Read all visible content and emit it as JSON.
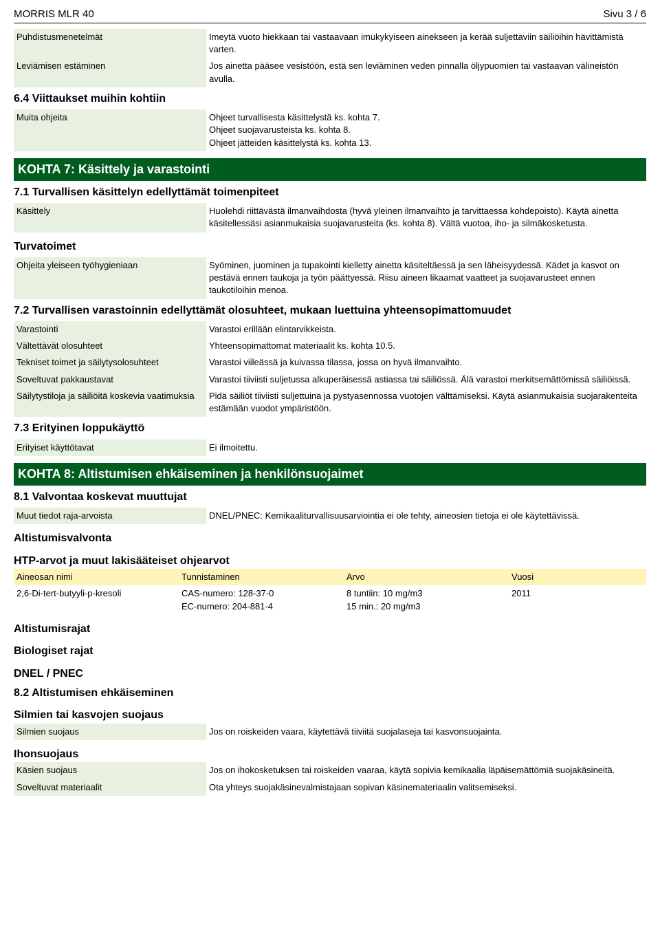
{
  "colors": {
    "section_bg": "#005c1f",
    "section_fg": "#ffffff",
    "label_shade": "#e8f0e0",
    "table_header_bg": "#fff4b8",
    "text": "#000000",
    "background": "#ffffff"
  },
  "header": {
    "title": "MORRIS MLR 40",
    "page": "Sivu 3 / 6"
  },
  "rows_pre": [
    {
      "label": "Puhdistusmenetelmät",
      "value": "Imeytä vuoto hiekkaan tai vastaavaan imukykyiseen ainekseen ja kerää suljettaviin säiliöihin hävittämistä varten."
    },
    {
      "label": "Leviämisen estäminen",
      "value": "Jos ainetta pääsee vesistöön, estä sen leviäminen veden pinnalla öljypuomien tai vastaavan välineistön avulla."
    }
  ],
  "sec64_title": "6.4 Viittaukset muihin kohtiin",
  "rows_64": [
    {
      "label": "Muita ohjeita",
      "value": "Ohjeet turvallisesta käsittelystä ks. kohta 7.\nOhjeet suojavarusteista ks. kohta 8.\nOhjeet jätteiden käsittelystä ks. kohta 13."
    }
  ],
  "kohta7": {
    "title": "KOHTA 7: Käsittely ja varastointi",
    "sec71": "7.1 Turvallisen käsittelyn edellyttämät toimenpiteet",
    "rows71": [
      {
        "label": "Käsittely",
        "value": "Huolehdi riittävästä ilmanvaihdosta (hyvä yleinen ilmanvaihto ja tarvittaessa kohdepoisto). Käytä ainetta käsitellessäsi asianmukaisia suojavarusteita (ks. kohta 8). Vältä vuotoa, iho- ja silmäkosketusta."
      }
    ],
    "turvatoimet": "Turvatoimet",
    "rows71b": [
      {
        "label": "Ohjeita yleiseen työhygieniaan",
        "value": "Syöminen, juominen ja tupakointi kielletty ainetta käsiteltäessä ja sen läheisyydessä. Kädet ja kasvot on pestävä ennen taukoja ja työn päättyessä. Riisu aineen likaamat vaatteet ja suojavarusteet ennen taukotiloihin menoa."
      }
    ],
    "sec72": "7.2 Turvallisen varastoinnin edellyttämät olosuhteet, mukaan luettuina yhteensopimattomuudet",
    "rows72": [
      {
        "label": "Varastointi",
        "value": "Varastoi erillään elintarvikkeista."
      },
      {
        "label": "Vältettävät olosuhteet",
        "value": "Yhteensopimattomat materiaalit ks. kohta 10.5."
      },
      {
        "label": "Tekniset toimet ja säilytysolosuhteet",
        "value": "Varastoi viileässä ja kuivassa tilassa, jossa on hyvä ilmanvaihto."
      },
      {
        "label": "Soveltuvat pakkaustavat",
        "value": "Varastoi tiiviisti suljetussa alkuperäisessä astiassa tai säiliössä. Älä varastoi merkitsemättömissä säiliöissä."
      },
      {
        "label": "Säilytystiloja ja säiliöitä koskevia vaatimuksia",
        "value": "Pidä säiliöt tiiviisti suljettuina ja pystyasennossa vuotojen välttämiseksi. Käytä asianmukaisia suojarakenteita estämään vuodot ympäristöön."
      }
    ],
    "sec73": "7.3 Erityinen loppukäyttö",
    "rows73": [
      {
        "label": "Erityiset käyttötavat",
        "value": "Ei ilmoitettu."
      }
    ]
  },
  "kohta8": {
    "title": "KOHTA 8: Altistumisen ehkäiseminen ja henkilönsuojaimet",
    "sec81": "8.1 Valvontaa koskevat muuttujat",
    "rows81": [
      {
        "label": "Muut tiedot raja-arvoista",
        "value": "DNEL/PNEC: Kemikaaliturvallisuusarviointia ei ole tehty, aineosien tietoja ei ole käytettävissä."
      }
    ],
    "altval": "Altistumisvalvonta",
    "htp": "HTP-arvot ja muut lakisääteiset ohjearvot",
    "table": {
      "headers": {
        "a": "Aineosan nimi",
        "b": "Tunnistaminen",
        "c": "Arvo",
        "d": "Vuosi"
      },
      "row": {
        "a": "2,6-Di-tert-butyyli-p-kresoli",
        "b": "CAS-numero: 128-37-0\nEC-numero: 204-881-4",
        "c": "8 tuntiin: 10 mg/m3\n15 min.: 20 mg/m3",
        "d": "2011"
      }
    },
    "altraj": "Altistumisrajat",
    "biorajat": "Biologiset rajat",
    "dnel": "DNEL / PNEC",
    "sec82": "8.2 Altistumisen ehkäiseminen",
    "silmsuoj": "Silmien tai kasvojen suojaus",
    "rows82a": [
      {
        "label": "Silmien suojaus",
        "value": "Jos on roiskeiden vaara, käytettävä tiiviitä suojalaseja tai kasvonsuojainta."
      }
    ],
    "ihon": "Ihonsuojaus",
    "rows82b": [
      {
        "label": "Käsien suojaus",
        "value": "Jos on ihokosketuksen tai roiskeiden vaaraa, käytä sopivia kemikaalia läpäisemättömiä suojakäsineitä."
      },
      {
        "label": "Soveltuvat materiaalit",
        "value": "Ota yhteys suojakäsinevalmistajaan sopivan käsinemateriaalin valitsemiseksi."
      }
    ]
  }
}
